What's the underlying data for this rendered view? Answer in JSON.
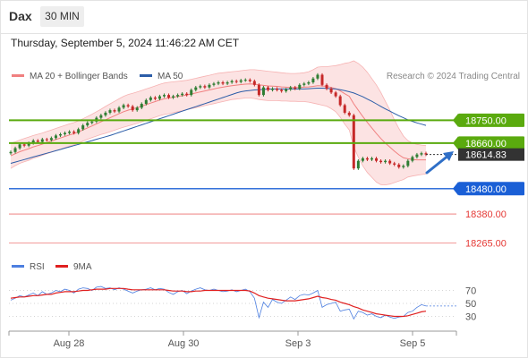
{
  "header": {
    "symbol": "Dax",
    "timeframe": "30 MIN"
  },
  "datetime": "Thursday, September 5, 2024 11:46:22 AM CET",
  "credit": "Research © 2024 Trading Central",
  "legend": {
    "bollinger": "MA 20 + Bollinger Bands",
    "ma50": "MA 50",
    "rsi": "RSI",
    "ma9": "9MA"
  },
  "colors": {
    "up": "#2e7d32",
    "down": "#c62828",
    "bollinger": "#f08080",
    "bollinger_fill": "#fcdede",
    "ma50": "#2c5da8",
    "resistance": "#5aaa0e",
    "support": "#1a5fd6",
    "target": "#e53935",
    "current": "#333333",
    "rsi": "#4d7fe0",
    "ma9": "#e02020",
    "arrow": "#2f6fc7"
  },
  "chart_data": [
    {
      "type": "candlestick",
      "title": "",
      "x_ticks": [
        "Aug 28",
        "Aug 30",
        "Sep 3",
        "Sep 5"
      ],
      "ylim": [
        18200,
        18900
      ],
      "levels": [
        {
          "label": "18750.00",
          "value": 18750,
          "kind": "resistance"
        },
        {
          "label": "18660.00",
          "value": 18660,
          "kind": "resistance"
        },
        {
          "label": "18614.83",
          "value": 18614.83,
          "kind": "current"
        },
        {
          "label": "18480.00",
          "value": 18480,
          "kind": "support"
        },
        {
          "label": "18380.00",
          "value": 18380,
          "kind": "target"
        },
        {
          "label": "18265.00",
          "value": 18265,
          "kind": "target"
        }
      ],
      "close": [
        18625,
        18640,
        18655,
        18650,
        18660,
        18670,
        18665,
        18675,
        18672,
        18680,
        18690,
        18695,
        18700,
        18705,
        18700,
        18715,
        18730,
        18740,
        18745,
        18760,
        18770,
        18780,
        18790,
        18785,
        18800,
        18810,
        18805,
        18790,
        18800,
        18815,
        18830,
        18840,
        18835,
        18845,
        18850,
        18840,
        18845,
        18850,
        18855,
        18850,
        18870,
        18880,
        18885,
        18880,
        18890,
        18895,
        18900,
        18895,
        18900,
        18905,
        18902,
        18908,
        18910,
        18905,
        18890,
        18850,
        18880,
        18870,
        18875,
        18870,
        18865,
        18872,
        18880,
        18875,
        18890,
        18895,
        18900,
        18915,
        18930,
        18890,
        18875,
        18860,
        18845,
        18810,
        18780,
        18770,
        18560,
        18590,
        18600,
        18595,
        18600,
        18590,
        18585,
        18590,
        18580,
        18575,
        18565,
        18570,
        18590,
        18605,
        18615,
        18620,
        18614.83
      ],
      "ma20": [
        18610,
        18618,
        18626,
        18632,
        18638,
        18645,
        18650,
        18656,
        18662,
        18668,
        18674,
        18680,
        18686,
        18692,
        18697,
        18704,
        18712,
        18720,
        18728,
        18736,
        18744,
        18752,
        18760,
        18768,
        18776,
        18784,
        18790,
        18795,
        18800,
        18806,
        18812,
        18818,
        18824,
        18830,
        18835,
        18838,
        18841,
        18844,
        18847,
        18850,
        18854,
        18858,
        18862,
        18866,
        18870,
        18874,
        18878,
        18881,
        18884,
        18887,
        18889,
        18891,
        18893,
        18894,
        18893,
        18890,
        18888,
        18886,
        18885,
        18884,
        18882,
        18881,
        18880,
        18880,
        18880,
        18881,
        18882,
        18884,
        18887,
        18886,
        18884,
        18880,
        18875,
        18866,
        18855,
        18845,
        18815,
        18790,
        18765,
        18742,
        18720,
        18698,
        18678,
        18660,
        18644,
        18628,
        18614,
        18602,
        18598,
        18595,
        18594,
        18594,
        18594
      ],
      "bb_upper": [
        18660,
        18665,
        18672,
        18678,
        18684,
        18690,
        18695,
        18700,
        18706,
        18712,
        18718,
        18724,
        18730,
        18736,
        18741,
        18748,
        18756,
        18765,
        18774,
        18784,
        18794,
        18805,
        18815,
        18825,
        18835,
        18845,
        18852,
        18857,
        18862,
        18868,
        18874,
        18880,
        18886,
        18892,
        18897,
        18900,
        18902,
        18904,
        18906,
        18908,
        18912,
        18916,
        18920,
        18924,
        18928,
        18932,
        18936,
        18938,
        18940,
        18942,
        18944,
        18946,
        18948,
        18950,
        18950,
        18948,
        18946,
        18944,
        18942,
        18940,
        18938,
        18936,
        18935,
        18935,
        18936,
        18938,
        18942,
        18950,
        18960,
        18962,
        18962,
        18964,
        18966,
        18970,
        18975,
        18978,
        18985,
        18975,
        18960,
        18940,
        18915,
        18890,
        18860,
        18825,
        18790,
        18752,
        18718,
        18688,
        18670,
        18660,
        18655,
        18652,
        18650
      ],
      "bb_lower": [
        18560,
        18571,
        18580,
        18586,
        18592,
        18600,
        18605,
        18612,
        18618,
        18624,
        18630,
        18636,
        18642,
        18648,
        18653,
        18660,
        18668,
        18675,
        18682,
        18688,
        18694,
        18699,
        18705,
        18711,
        18717,
        18723,
        18728,
        18733,
        18738,
        18744,
        18750,
        18756,
        18762,
        18768,
        18773,
        18776,
        18780,
        18784,
        18788,
        18792,
        18796,
        18800,
        18804,
        18808,
        18812,
        18816,
        18820,
        18824,
        18828,
        18832,
        18834,
        18836,
        18838,
        18838,
        18836,
        18832,
        18830,
        18828,
        18828,
        18828,
        18826,
        18826,
        18825,
        18825,
        18824,
        18824,
        18822,
        18818,
        18814,
        18810,
        18806,
        18796,
        18784,
        18762,
        18735,
        18712,
        18645,
        18605,
        18570,
        18544,
        18525,
        18506,
        18496,
        18495,
        18498,
        18504,
        18510,
        18516,
        18526,
        18530,
        18533,
        18536,
        18538
      ],
      "ma50": [
        18580,
        18585,
        18590,
        18595,
        18600,
        18605,
        18610,
        18615,
        18620,
        18625,
        18630,
        18635,
        18640,
        18645,
        18650,
        18655,
        18660,
        18665,
        18670,
        18675,
        18680,
        18685,
        18690,
        18696,
        18702,
        18708,
        18714,
        18720,
        18726,
        18732,
        18738,
        18744,
        18750,
        18756,
        18762,
        18768,
        18774,
        18780,
        18786,
        18792,
        18798,
        18804,
        18810,
        18816,
        18822,
        18828,
        18834,
        18840,
        18846,
        18852,
        18858,
        18863,
        18866,
        18868,
        18870,
        18871,
        18872,
        18873,
        18874,
        18874,
        18874,
        18874,
        18874,
        18874,
        18874,
        18874,
        18875,
        18876,
        18877,
        18877,
        18876,
        18875,
        18874,
        18871,
        18867,
        18863,
        18858,
        18851,
        18843,
        18834,
        18825,
        18815,
        18805,
        18795,
        18786,
        18777,
        18768,
        18760,
        18752,
        18746,
        18740,
        18735,
        18730
      ]
    },
    {
      "type": "line",
      "title": "",
      "x_ticks": [
        "Aug 28",
        "Aug 30",
        "Sep 3",
        "Sep 5"
      ],
      "y_ticks": [
        70,
        50,
        30
      ],
      "ylim": [
        10,
        90
      ],
      "series": [
        {
          "name": "RSI",
          "values": [
            55,
            58,
            62,
            60,
            63,
            66,
            62,
            68,
            64,
            66,
            70,
            68,
            72,
            70,
            66,
            72,
            74,
            73,
            70,
            75,
            76,
            73,
            74,
            71,
            74,
            72,
            69,
            66,
            69,
            71,
            72,
            74,
            71,
            73,
            72,
            67,
            64,
            68,
            70,
            65,
            69,
            72,
            74,
            71,
            70,
            72,
            70,
            68,
            69,
            71,
            68,
            70,
            72,
            68,
            58,
            28,
            52,
            44,
            56,
            52,
            50,
            55,
            60,
            56,
            62,
            64,
            63,
            66,
            70,
            44,
            48,
            50,
            52,
            38,
            40,
            41,
            26,
            38,
            36,
            32,
            34,
            30,
            28,
            32,
            29,
            27,
            29,
            30,
            36,
            38,
            44,
            48,
            46
          ]
        },
        {
          "name": "9MA",
          "values": [
            58,
            59,
            60,
            60,
            61,
            62,
            62,
            63,
            64,
            64,
            66,
            67,
            68,
            68,
            68,
            69,
            70,
            70,
            71,
            72,
            72,
            72,
            73,
            73,
            73,
            73,
            72,
            71,
            71,
            71,
            71,
            71,
            71,
            71,
            71,
            70,
            69,
            69,
            69,
            68,
            68,
            69,
            69,
            70,
            70,
            70,
            70,
            70,
            70,
            70,
            70,
            70,
            70,
            69,
            66,
            62,
            60,
            58,
            57,
            56,
            55,
            54,
            54,
            54,
            55,
            56,
            57,
            59,
            61,
            59,
            58,
            56,
            55,
            52,
            50,
            48,
            45,
            43,
            40,
            38,
            36,
            34,
            33,
            32,
            31,
            30,
            30,
            30,
            31,
            33,
            35,
            37,
            38
          ]
        }
      ]
    }
  ]
}
